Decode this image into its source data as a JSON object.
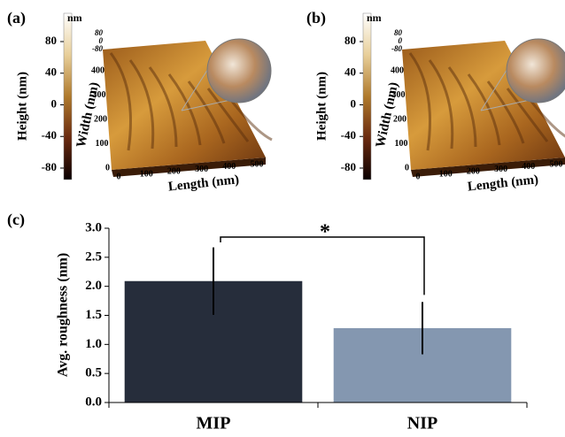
{
  "panels": [
    {
      "label": "(a)",
      "colorbar_unit": "nm",
      "colorbar_ticks": [
        80,
        40,
        0,
        -40,
        -80
      ],
      "colorbar_label": "Height (nm)",
      "x_label": "Length (nm)",
      "y_label": "Width (nm)",
      "x_ticks": [
        0,
        100,
        200,
        300,
        400,
        500
      ],
      "y_ticks": [
        0,
        100,
        200,
        300,
        400
      ],
      "z_ticks": [
        80,
        0,
        -80
      ]
    },
    {
      "label": "(b)",
      "colorbar_unit": "nm",
      "colorbar_ticks": [
        80,
        40,
        0,
        -40,
        -80
      ],
      "colorbar_label": "Height (nm)",
      "x_label": "Length (nm)",
      "y_label": "Width (nm)",
      "x_ticks": [
        0,
        100,
        200,
        300,
        400,
        500
      ],
      "y_ticks": [
        0,
        100,
        200,
        300,
        400
      ],
      "z_ticks": [
        80,
        0,
        -80
      ]
    }
  ],
  "chart_data": {
    "type": "bar",
    "label": "(c)",
    "y_label": "Avg. roughness (nm)",
    "categories": [
      "MIP",
      "NIP"
    ],
    "values": [
      2.09,
      1.28
    ],
    "errors": [
      0.58,
      0.45
    ],
    "colors": [
      "#262d3b",
      "#8497b0"
    ],
    "ylim": [
      0,
      3
    ],
    "yticks": [
      {
        "value": 0,
        "label": "0.0"
      },
      0.5,
      {
        "value": 1,
        "label": "1.0"
      },
      1.5,
      {
        "value": 2,
        "label": "2.0"
      },
      2.5,
      {
        "value": 3,
        "label": "3.0"
      }
    ],
    "annotation": "*"
  }
}
